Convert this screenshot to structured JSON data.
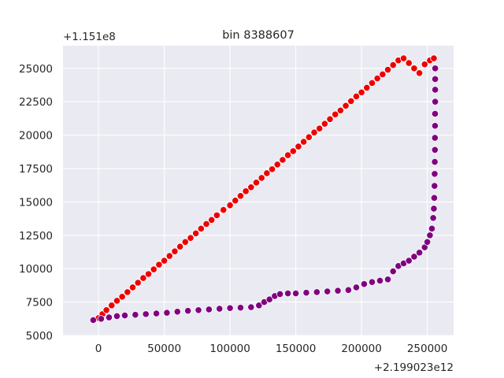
{
  "colors": {
    "plot_background": "#eaeaf2",
    "grid": "#ffffff",
    "series_red": "#ee0000",
    "series_purple": "#800080",
    "marker_edge": "#ffffff"
  },
  "chart_data": {
    "type": "scatter",
    "title": "bin 8388607",
    "xlabel": "",
    "ylabel": "",
    "x_offset_label": "+2.199023e12",
    "y_offset_label": "+1.151e8",
    "xlim": [
      -27000,
      270000
    ],
    "ylim": [
      5000,
      26700
    ],
    "x_ticks": [
      0,
      50000,
      100000,
      150000,
      200000,
      250000
    ],
    "x_tick_labels": [
      "0",
      "50000",
      "100000",
      "150000",
      "200000",
      "250000"
    ],
    "y_ticks": [
      5000,
      7500,
      10000,
      12500,
      15000,
      17500,
      20000,
      22500,
      25000
    ],
    "y_tick_labels": [
      "5000",
      "7500",
      "10000",
      "12500",
      "15000",
      "17500",
      "20000",
      "22500",
      "25000"
    ],
    "grid": true,
    "series": [
      {
        "color_key": "series_red",
        "points": [
          [
            -4000,
            6150
          ],
          [
            0,
            6300
          ],
          [
            3000,
            6600
          ],
          [
            6000,
            6900
          ],
          [
            10000,
            7250
          ],
          [
            14000,
            7600
          ],
          [
            18000,
            7900
          ],
          [
            22000,
            8250
          ],
          [
            26000,
            8600
          ],
          [
            30000,
            8950
          ],
          [
            34000,
            9300
          ],
          [
            38000,
            9600
          ],
          [
            42000,
            9950
          ],
          [
            46000,
            10300
          ],
          [
            50000,
            10600
          ],
          [
            54000,
            10950
          ],
          [
            58000,
            11300
          ],
          [
            62000,
            11650
          ],
          [
            66000,
            12000
          ],
          [
            70000,
            12300
          ],
          [
            74000,
            12650
          ],
          [
            78000,
            13000
          ],
          [
            82000,
            13350
          ],
          [
            86000,
            13650
          ],
          [
            90000,
            14000
          ],
          [
            95000,
            14400
          ],
          [
            100000,
            14750
          ],
          [
            104000,
            15100
          ],
          [
            108000,
            15450
          ],
          [
            112000,
            15800
          ],
          [
            116000,
            16100
          ],
          [
            120000,
            16450
          ],
          [
            124000,
            16800
          ],
          [
            128000,
            17150
          ],
          [
            132000,
            17450
          ],
          [
            136000,
            17800
          ],
          [
            140000,
            18150
          ],
          [
            144000,
            18500
          ],
          [
            148000,
            18800
          ],
          [
            152000,
            19150
          ],
          [
            156000,
            19500
          ],
          [
            160000,
            19850
          ],
          [
            164000,
            20200
          ],
          [
            168000,
            20500
          ],
          [
            172000,
            20850
          ],
          [
            176000,
            21200
          ],
          [
            180000,
            21550
          ],
          [
            184000,
            21850
          ],
          [
            188000,
            22200
          ],
          [
            192000,
            22550
          ],
          [
            196000,
            22900
          ],
          [
            200000,
            23200
          ],
          [
            204000,
            23550
          ],
          [
            208000,
            23900
          ],
          [
            212000,
            24250
          ],
          [
            216000,
            24550
          ],
          [
            220000,
            24900
          ],
          [
            224000,
            25250
          ],
          [
            228000,
            25600
          ],
          [
            232000,
            25750
          ],
          [
            236000,
            25400
          ],
          [
            240000,
            25000
          ],
          [
            244000,
            24650
          ],
          [
            248000,
            25300
          ],
          [
            252000,
            25600
          ],
          [
            255000,
            25750
          ]
        ]
      },
      {
        "color_key": "series_purple",
        "points": [
          [
            -4000,
            6150
          ],
          [
            2000,
            6250
          ],
          [
            8000,
            6350
          ],
          [
            14000,
            6450
          ],
          [
            20000,
            6500
          ],
          [
            28000,
            6550
          ],
          [
            36000,
            6600
          ],
          [
            44000,
            6650
          ],
          [
            52000,
            6700
          ],
          [
            60000,
            6780
          ],
          [
            68000,
            6850
          ],
          [
            76000,
            6900
          ],
          [
            84000,
            6950
          ],
          [
            92000,
            7000
          ],
          [
            100000,
            7050
          ],
          [
            108000,
            7080
          ],
          [
            116000,
            7120
          ],
          [
            122000,
            7250
          ],
          [
            126000,
            7500
          ],
          [
            130000,
            7700
          ],
          [
            134000,
            7950
          ],
          [
            138000,
            8100
          ],
          [
            144000,
            8150
          ],
          [
            150000,
            8150
          ],
          [
            158000,
            8200
          ],
          [
            166000,
            8250
          ],
          [
            174000,
            8300
          ],
          [
            182000,
            8350
          ],
          [
            190000,
            8400
          ],
          [
            196000,
            8600
          ],
          [
            202000,
            8850
          ],
          [
            208000,
            9000
          ],
          [
            214000,
            9100
          ],
          [
            220000,
            9200
          ],
          [
            224000,
            9800
          ],
          [
            228000,
            10200
          ],
          [
            232000,
            10400
          ],
          [
            236000,
            10600
          ],
          [
            240000,
            10900
          ],
          [
            244000,
            11200
          ],
          [
            248000,
            11600
          ],
          [
            250000,
            12000
          ],
          [
            252000,
            12500
          ],
          [
            253500,
            13000
          ],
          [
            254500,
            13800
          ],
          [
            255000,
            14500
          ],
          [
            255300,
            15300
          ],
          [
            255500,
            16200
          ],
          [
            255600,
            17100
          ],
          [
            255700,
            18000
          ],
          [
            255800,
            18900
          ],
          [
            255800,
            19800
          ],
          [
            255900,
            20700
          ],
          [
            255900,
            21600
          ],
          [
            256000,
            22500
          ],
          [
            256000,
            23400
          ],
          [
            256000,
            24200
          ],
          [
            256000,
            25000
          ]
        ]
      }
    ]
  }
}
